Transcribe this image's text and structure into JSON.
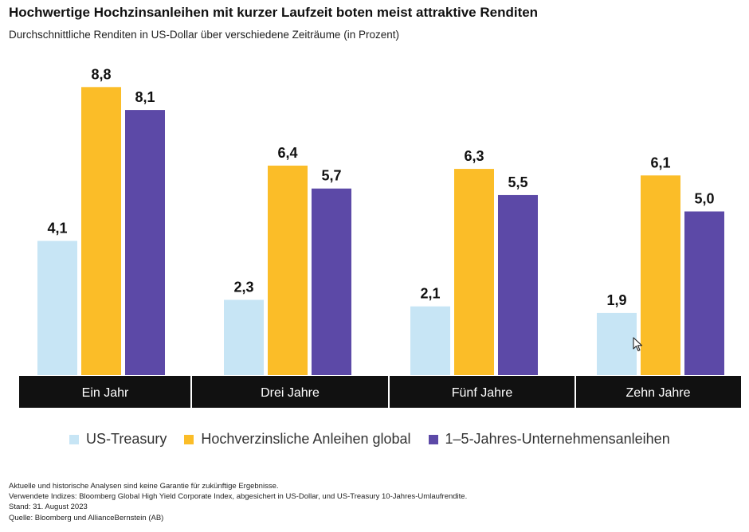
{
  "title": "Hochwertige Hochzinsanleihen mit kurzer Laufzeit boten meist attraktive Renditen",
  "subtitle": "Durchschnittliche Renditen in US-Dollar über verschiedene Zeiträume (in Prozent)",
  "chart_data": {
    "type": "bar",
    "title": "Hochwertige Hochzinsanleihen mit kurzer Laufzeit boten meist attraktive Renditen",
    "subtitle": "Durchschnittliche Renditen in US-Dollar über verschiedene Zeiträume (in Prozent)",
    "categories": [
      "Ein Jahr",
      "Drei Jahre",
      "Fünf Jahre",
      "Zehn Jahre"
    ],
    "series": [
      {
        "name": "US-Treasury",
        "values": [
          4.1,
          2.3,
          2.1,
          1.9
        ],
        "labels": [
          "4,1",
          "2,3",
          "2,1",
          "1,9"
        ],
        "color": "#c7e5f5"
      },
      {
        "name": "Hochverzinsliche Anleihen global",
        "values": [
          8.8,
          6.4,
          6.3,
          6.1
        ],
        "labels": [
          "8,8",
          "6,4",
          "6,3",
          "6,1"
        ],
        "color": "#fbbd28"
      },
      {
        "name": "1–5-Jahres-Unternehmensanleihen",
        "values": [
          8.1,
          5.7,
          5.5,
          5.0
        ],
        "labels": [
          "8,1",
          "5,7",
          "5,5",
          "5,0"
        ],
        "color": "#5c49a7"
      }
    ],
    "ylim": [
      0,
      9.5
    ],
    "xlabel": "",
    "ylabel": "",
    "legend": "bottom",
    "grid": false
  },
  "colors": {
    "category_band": "#111111",
    "category_text": "#ffffff"
  },
  "footnotes": [
    "Aktuelle und historische Analysen sind keine Garantie für zukünftige Ergebnisse.",
    "Verwendete Indizes: Bloomberg Global High Yield Corporate Index, abgesichert in US-Dollar, und US-Treasury 10-Jahres-Umlaufrendite.",
    "Stand: 31. August 2023",
    "Quelle: Bloomberg und AllianceBernstein (AB)"
  ],
  "cursor_icon": "mouse-pointer-icon"
}
